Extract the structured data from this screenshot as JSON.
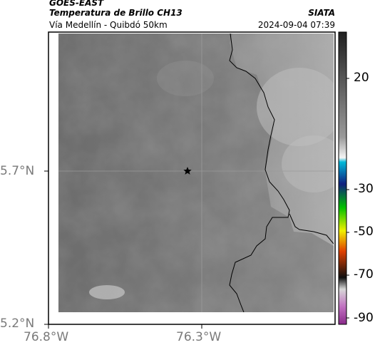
{
  "header": {
    "agency": "GOES-EAST",
    "product": "Temperatura de Brillo CH13",
    "organization": "SIATA",
    "region": "Vía Medellín - Quibdó 50km",
    "timestamp": "2024-09-04 07:39"
  },
  "axes": {
    "y_ticks": [
      "5.7°N",
      "5.2°N"
    ],
    "x_ticks": [
      "76.8°W",
      "76.3°W"
    ]
  },
  "colorbar": {
    "ticks": [
      "20",
      "-30",
      "-50",
      "-70",
      "-90"
    ],
    "colors": [
      "#202020",
      "#9a9a9a",
      "#f5f5f5",
      "#00b8d8",
      "#102080",
      "#00c000",
      "#f0f000",
      "#e04000",
      "#101010",
      "#c070c0"
    ]
  },
  "marker": {
    "icon": "star-icon"
  },
  "colors": {
    "land_dark": "#6a6a6a",
    "land_light": "#a8a8a8",
    "border_line": "#000000"
  }
}
